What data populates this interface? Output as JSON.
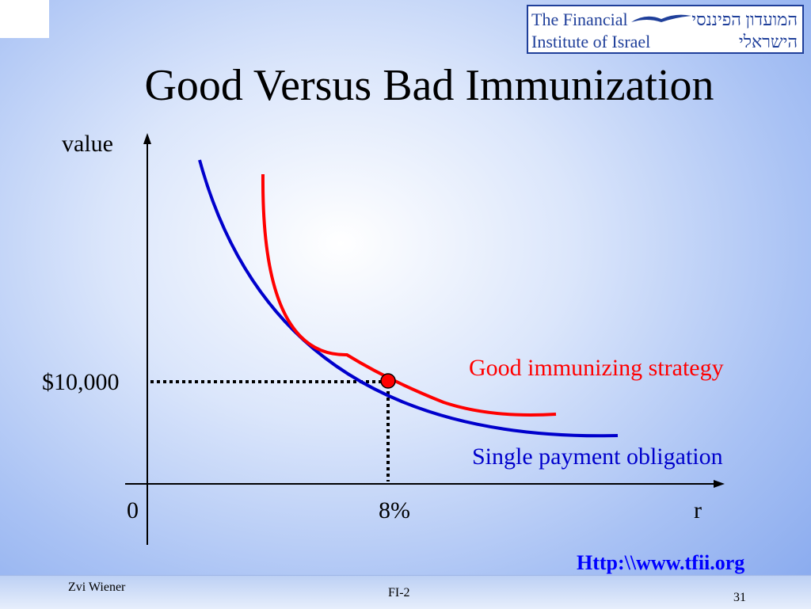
{
  "title": "Good Versus Bad Immunization",
  "logo": {
    "english_line1": "The Financial",
    "english_line2": "Institute of Israel",
    "hebrew_line1": "המועדון הפיננסי",
    "hebrew_line2": "הישראלי"
  },
  "axes": {
    "y_label": "value",
    "x_label": "r",
    "origin_label": "0",
    "y_tick_label": "$10,000",
    "x_tick_label": "8%"
  },
  "curves": [
    {
      "name": "Good immunizing strategy",
      "color": "#ff0000"
    },
    {
      "name": "Single payment obligation",
      "color": "#0000cc"
    }
  ],
  "tangency_point": {
    "rate": "8%",
    "value": "$10,000",
    "color": "#ff0000"
  },
  "url": "Http:\\\\www.tfii.org",
  "footer": {
    "author": "Zvi Wiener",
    "course": "FI-2",
    "page": "31"
  }
}
